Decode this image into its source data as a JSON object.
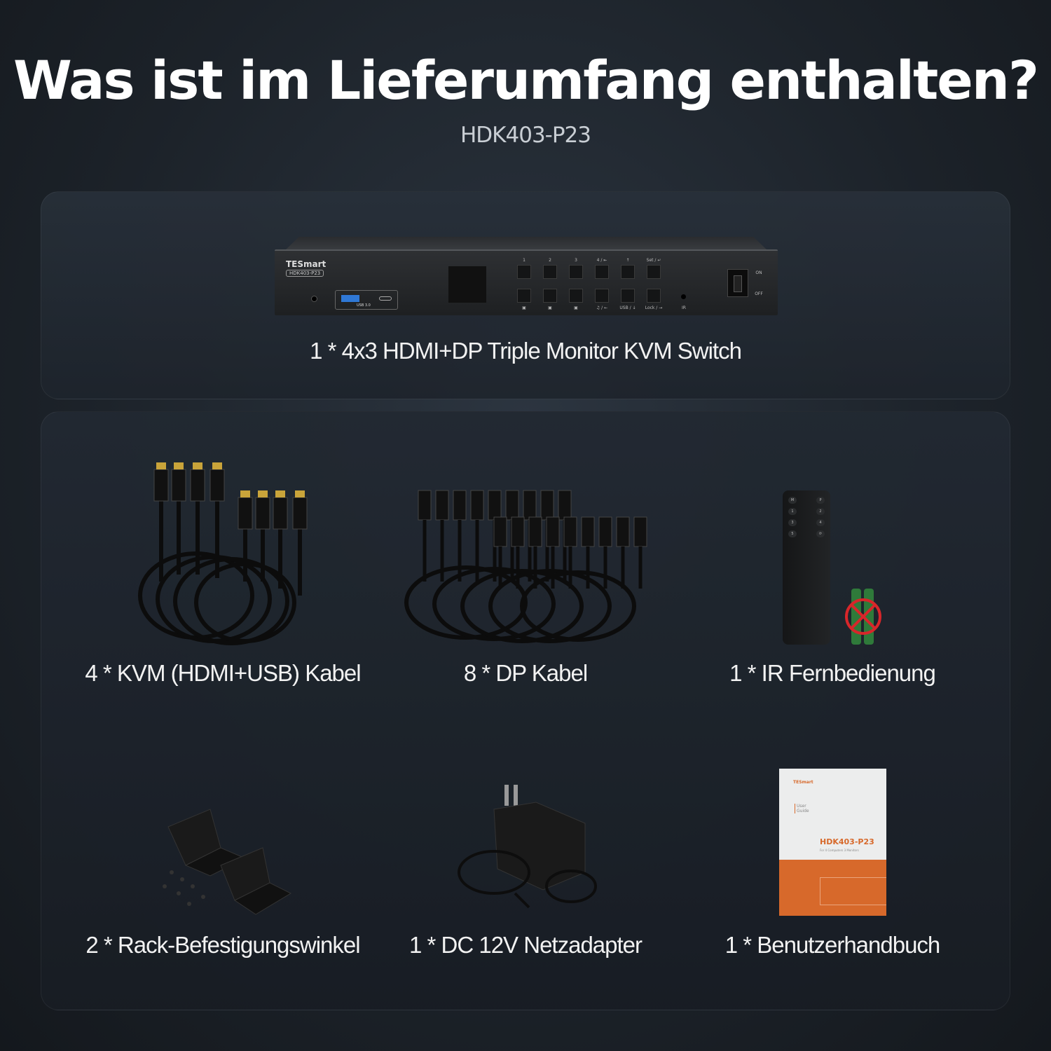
{
  "header": {
    "title": "Was ist im Lieferumfang enthalten?",
    "subtitle": "HDK403-P23"
  },
  "main_product": {
    "caption": "1 * 4x3 HDMI+DP Triple Monitor KVM Switch",
    "brand": "TESmart",
    "model": "HDK403-P23",
    "button_labels_top": [
      "1",
      "2",
      "3",
      "4 / ⇤",
      "↑",
      "Set / ↵"
    ],
    "button_labels_bottom": [
      "▣",
      "▣",
      "▣",
      "♫ / ←",
      "USB / ↓",
      "Lock / →"
    ],
    "usb_label": "USB 3.0",
    "ir_label": "IR",
    "power_on": "ON",
    "power_off": "OFF"
  },
  "accessories": [
    {
      "caption": "4 * KVM (HDMI+USB) Kabel",
      "icon": "hdmi-cable"
    },
    {
      "caption": "8 * DP Kabel",
      "icon": "dp-cable"
    },
    {
      "caption": "1 * IR Fernbedienung",
      "icon": "remote-control"
    },
    {
      "caption": "2 * Rack-Befestigungswinkel",
      "icon": "rack-bracket"
    },
    {
      "caption": "1 * DC 12V Netzadapter",
      "icon": "power-adapter"
    },
    {
      "caption": "1 * Benutzerhandbuch",
      "icon": "user-manual"
    }
  ],
  "remote": {
    "buttons_left": [
      "M",
      "1",
      "3",
      "5"
    ],
    "buttons_right": [
      "P",
      "2",
      "4",
      "⟳"
    ]
  },
  "manual": {
    "brand": "TESmart",
    "label": "User Guide",
    "model": "HDK403-P23",
    "subtitle": "For 4 Computers 3 Monitors"
  },
  "colors": {
    "accent": "#d7692b",
    "background": "#1c2229"
  }
}
